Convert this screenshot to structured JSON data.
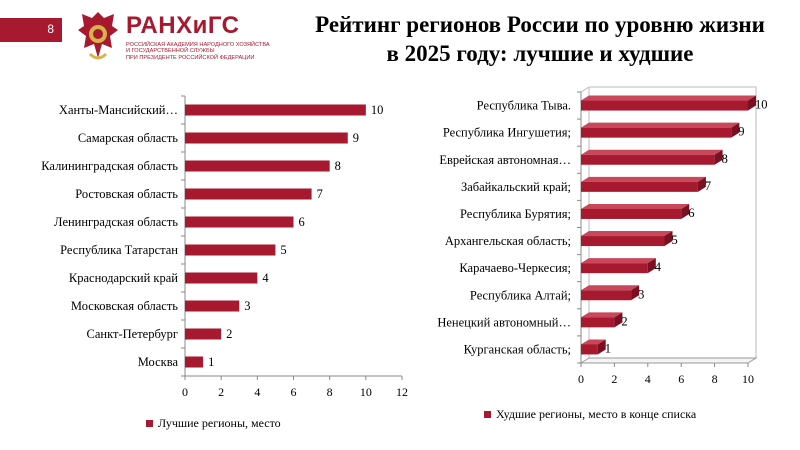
{
  "slide": {
    "number": "8"
  },
  "logo": {
    "name": "РАНХиГС",
    "lines": [
      "Российская академия народного хозяйства",
      "и государственной службы",
      "при Президенте Российской Федерации"
    ]
  },
  "title": {
    "line1": "Рейтинг регионов России по уровню жизни",
    "line2": "в 2025 году: лучшие и худшие"
  },
  "colors": {
    "bar": "#a6192e",
    "accent": "#a6192e"
  },
  "chart_data": [
    {
      "type": "bar",
      "orientation": "horizontal",
      "categories": [
        "Ханты-Мансийский…",
        "Самарская область",
        "Калининградская область",
        "Ростовская область",
        "Ленинградская область",
        "Республика Татарстан",
        "Краснодарский край",
        "Московская область",
        "Санкт-Петербург",
        "Москва"
      ],
      "series": [
        {
          "name": "Лучшие регионы, место",
          "values": [
            10,
            9,
            8,
            7,
            6,
            5,
            4,
            3,
            2,
            1
          ]
        }
      ],
      "xlim": [
        0,
        12
      ],
      "ticks": [
        "0",
        "2",
        "4",
        "6",
        "8",
        "10",
        "12"
      ],
      "legend": "bottom"
    },
    {
      "type": "bar",
      "orientation": "horizontal",
      "style": "3d",
      "categories": [
        "Республика Тыва.",
        "Республика Ингушетия;",
        "Еврейская автономная…",
        "Забайкальский край;",
        "Республика Бурятия;",
        "Архангельская область;",
        "Карачаево-Черкесия;",
        "Республика Алтай;",
        "Ненецкий автономный…",
        "Курганская область;"
      ],
      "series": [
        {
          "name": "Худшие регионы, место в конце списка",
          "values": [
            10,
            9,
            8,
            7,
            6,
            5,
            4,
            3,
            2,
            1
          ]
        }
      ],
      "xlim": [
        0,
        10
      ],
      "ticks": [
        "0",
        "2",
        "4",
        "6",
        "8",
        "10"
      ],
      "legend": "bottom"
    }
  ]
}
